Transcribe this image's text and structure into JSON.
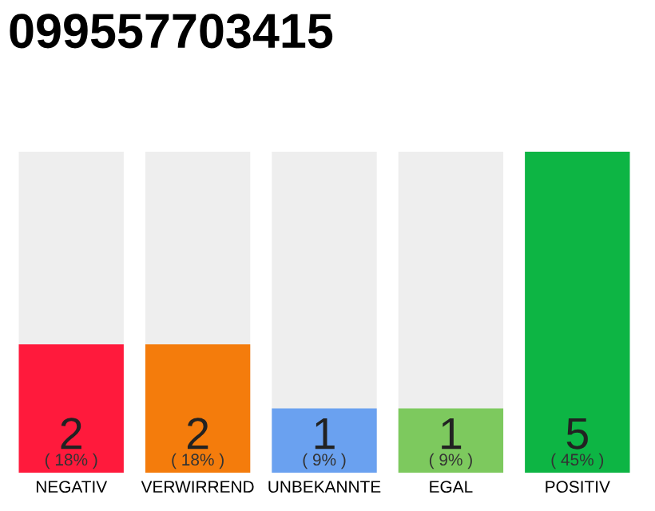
{
  "chart_data": {
    "type": "bar",
    "title": "099557703415",
    "categories": [
      "NEGATIV",
      "VERWIRREND",
      "UNBEKANNTE",
      "EGAL",
      "POSITIV"
    ],
    "values": [
      2,
      2,
      1,
      1,
      5
    ],
    "colors": [
      "#ff1a3c",
      "#f47c0c",
      "#6aa1f0",
      "#7dc95e",
      "#0db544"
    ],
    "value_labels": [
      "2",
      "2",
      "1",
      "1",
      "5"
    ],
    "annotations": [
      "( 18% )",
      "( 18% )",
      "( 9% )",
      "( 9% )",
      "( 45% )"
    ],
    "tick_labels": "x"
  }
}
